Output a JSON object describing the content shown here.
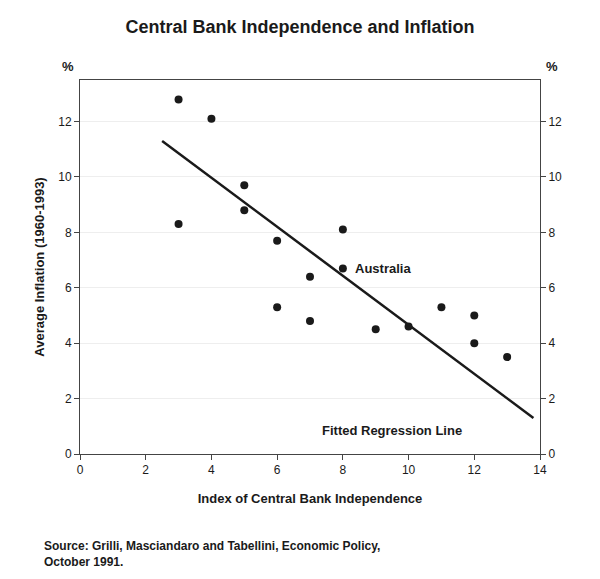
{
  "chart_data": {
    "type": "scatter",
    "title": "Central Bank Independence and Inflation",
    "xlabel": "Index of Central Bank Independence",
    "ylabel": "Average Inflation (1960-1993)",
    "source": "Source: Grilli, Masciandaro and Tabellini, Economic Policy,\nOctober 1991.",
    "series": [
      {
        "type": "scatter",
        "marker": "circle",
        "color": "#1a1a1a",
        "x": [
          3,
          3,
          4,
          5,
          5,
          6,
          6,
          7,
          7,
          8,
          9,
          10,
          11,
          12,
          12,
          13,
          8
        ],
        "values": [
          12.8,
          8.3,
          12.1,
          9.7,
          8.8,
          7.7,
          5.3,
          6.4,
          4.8,
          8.1,
          4.5,
          4.6,
          5.3,
          4.0,
          5.0,
          3.5,
          6.7
        ]
      },
      {
        "type": "line",
        "line_style": "solid",
        "color": "#1a1a1a",
        "x": [
          2.5,
          13.8
        ],
        "values": [
          11.3,
          1.3
        ]
      }
    ],
    "annotations": [
      {
        "text": "Australia",
        "x": 8,
        "y": 6.7
      },
      {
        "text": "Fitted Regression Line",
        "x": 7.3,
        "y": 1.2
      },
      {
        "text": "%",
        "axis": "y"
      },
      {
        "text": "%",
        "axis": "y2"
      }
    ],
    "xlim": [
      0,
      14
    ],
    "xticks": [
      0,
      2,
      4,
      6,
      8,
      10,
      12,
      14
    ],
    "ylim": [
      0,
      13.5
    ],
    "yticks": [
      0,
      2,
      4,
      6,
      8,
      10,
      12
    ],
    "y2lim": [
      0,
      13.5
    ],
    "y2ticks": [
      0,
      2,
      4,
      6,
      8,
      10,
      12
    ],
    "grid": "y"
  }
}
